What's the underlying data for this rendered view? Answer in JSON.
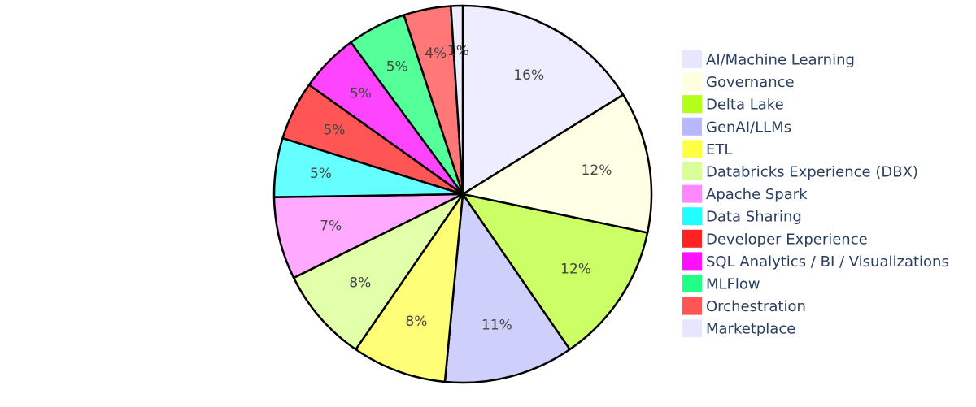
{
  "chart_data": {
    "type": "pie",
    "categories": [
      "AI/Machine Learning",
      "Governance",
      "Delta Lake",
      "GenAI/LLMs",
      "ETL",
      "Databricks Experience (DBX)",
      "Apache Spark",
      "Data Sharing",
      "Developer Experience",
      "SQL Analytics / BI / Visualizations",
      "MLFlow",
      "Orchestration",
      "Marketplace"
    ],
    "values": [
      16,
      12,
      12,
      11,
      8,
      8,
      7,
      5,
      5,
      5,
      5,
      4,
      1
    ],
    "labels": [
      "16%",
      "12%",
      "12%",
      "11%",
      "8%",
      "8%",
      "7%",
      "5%",
      "5%",
      "5%",
      "5%",
      "4%",
      "1%"
    ],
    "legend": "right",
    "direction": "clockwise",
    "start": "top"
  },
  "colors": {
    "AI/Machine Learning": "#ededff",
    "Governance": "#ffffe6",
    "Delta Lake": "#ccff66",
    "GenAI/LLMs": "#cfcffc",
    "ETL": "#ffff77",
    "Databricks Experience (DBX)": "#e2ffaa",
    "Apache Spark": "#ffaaff",
    "Data Sharing": "#66ffff",
    "Developer Experience": "#ff5555",
    "SQL Analytics / BI / Visualizations": "#ff44ff",
    "MLFlow": "#55ff99",
    "Orchestration": "#ff7777",
    "Marketplace": "#ededff"
  },
  "legend_colors": {
    "AI/Machine Learning": "#e6e6ff",
    "Governance": "#ffffe0",
    "Delta Lake": "#b3ff1a",
    "GenAI/LLMs": "#b8b8ff",
    "ETL": "#ffff44",
    "Databricks Experience (DBX)": "#d9ff99",
    "Apache Spark": "#ff88ff",
    "Data Sharing": "#22ffff",
    "Developer Experience": "#ff2222",
    "SQL Analytics / BI / Visualizations": "#ff11ff",
    "MLFlow": "#22ff88",
    "Orchestration": "#ff5555",
    "Marketplace": "#e6e6ff"
  }
}
